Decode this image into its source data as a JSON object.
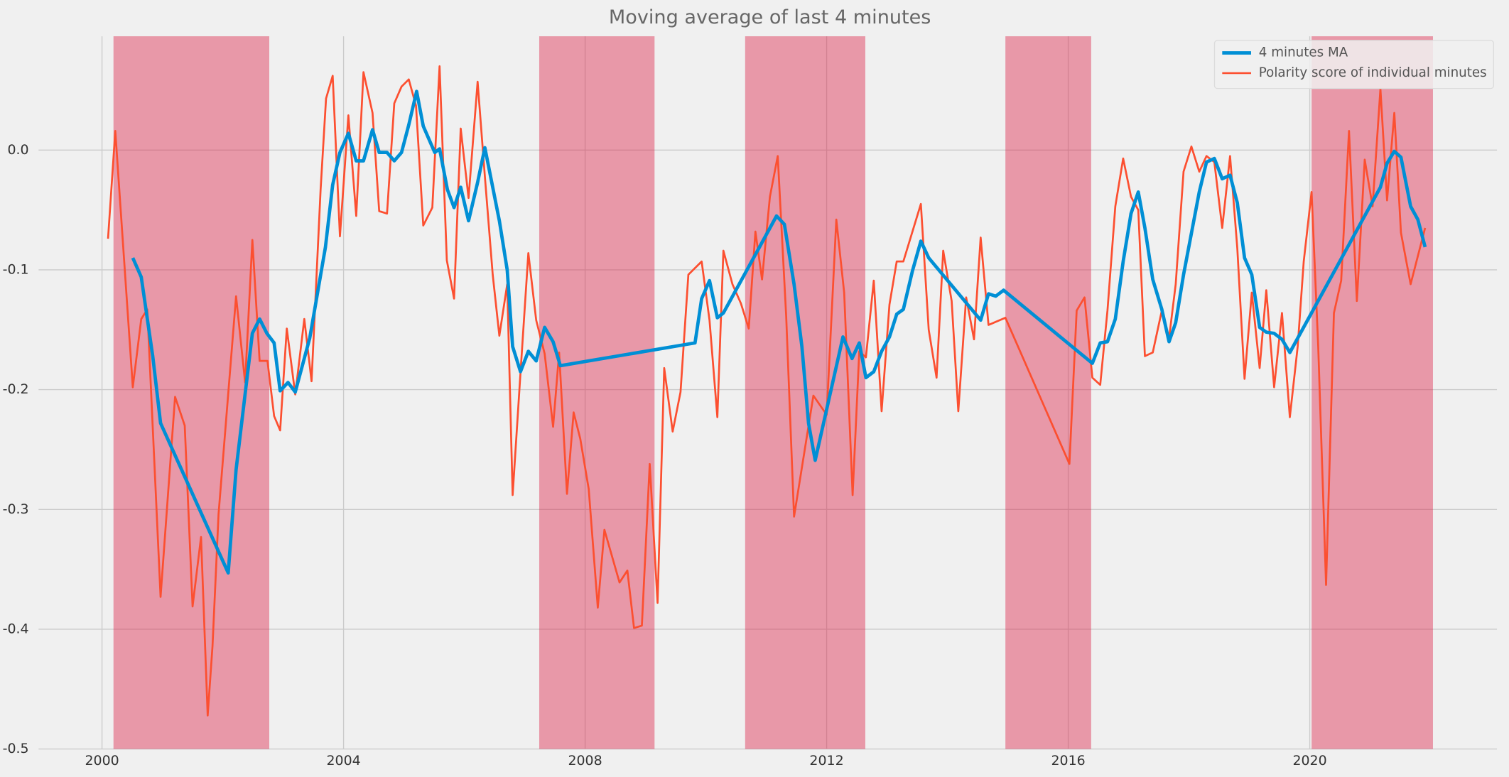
{
  "chart_data": {
    "type": "line",
    "title": "Moving average of last 4 minutes",
    "xlim": [
      1998.95,
      2023.1
    ],
    "ylim": [
      -0.5,
      0.095
    ],
    "xticks": [
      2000,
      2004,
      2008,
      2012,
      2016,
      2020
    ],
    "yticks": [
      {
        "value": 0,
        "label": "0.0"
      },
      -0.1,
      -0.2,
      -0.3,
      -0.4,
      -0.5
    ],
    "grid": true,
    "legend": "upper-right",
    "span_color": "#dc143c",
    "spans": [
      [
        2000.19,
        2002.77
      ],
      [
        2007.24,
        2009.15
      ],
      [
        2010.65,
        2012.64
      ],
      [
        2014.96,
        2016.38
      ],
      [
        2020.03,
        2022.04
      ]
    ],
    "series": [
      {
        "name": "4 minutes MA",
        "color": "#008fd5",
        "x": [
          2000.51,
          2000.65,
          2000.84,
          2000.97,
          2002.09,
          2002.22,
          2002.49,
          2002.61,
          2002.73,
          2002.85,
          2002.95,
          2003.08,
          2003.2,
          2003.44,
          2003.7,
          2003.82,
          2003.94,
          2004.08,
          2004.21,
          2004.33,
          2004.48,
          2004.59,
          2004.72,
          2004.84,
          2004.96,
          2005.08,
          2005.21,
          2005.32,
          2005.51,
          2005.59,
          2005.72,
          2005.83,
          2005.94,
          2006.07,
          2006.22,
          2006.34,
          2006.47,
          2006.58,
          2006.71,
          2006.8,
          2006.93,
          2007.06,
          2007.19,
          2007.33,
          2007.47,
          2007.59,
          2009.82,
          2009.93,
          2010.06,
          2010.19,
          2010.29,
          2011.17,
          2011.3,
          2011.46,
          2011.59,
          2011.7,
          2011.81,
          2012.27,
          2012.42,
          2012.54,
          2012.65,
          2012.78,
          2012.91,
          2013.04,
          2013.16,
          2013.27,
          2013.42,
          2013.56,
          2013.69,
          2014.55,
          2014.68,
          2014.8,
          2014.93,
          2016.4,
          2016.53,
          2016.65,
          2016.78,
          2016.91,
          2017.04,
          2017.16,
          2017.27,
          2017.4,
          2017.55,
          2017.67,
          2017.78,
          2017.91,
          2018.17,
          2018.29,
          2018.42,
          2018.55,
          2018.68,
          2018.8,
          2018.92,
          2019.04,
          2019.17,
          2019.28,
          2019.41,
          2019.54,
          2019.67,
          2021.17,
          2021.28,
          2021.4,
          2021.51,
          2021.67,
          2021.79,
          2021.91
        ],
        "values": [
          -0.09,
          -0.106,
          -0.172,
          -0.228,
          -0.353,
          -0.267,
          -0.153,
          -0.141,
          -0.153,
          -0.161,
          -0.201,
          -0.194,
          -0.202,
          -0.157,
          -0.081,
          -0.029,
          -0.002,
          0.014,
          -0.009,
          -0.009,
          0.017,
          -0.002,
          -0.002,
          -0.009,
          -0.002,
          0.021,
          0.049,
          0.02,
          -0.002,
          0.001,
          -0.033,
          -0.048,
          -0.031,
          -0.059,
          -0.027,
          0.002,
          -0.031,
          -0.059,
          -0.1,
          -0.164,
          -0.185,
          -0.168,
          -0.176,
          -0.148,
          -0.16,
          -0.18,
          -0.161,
          -0.124,
          -0.109,
          -0.14,
          -0.136,
          -0.055,
          -0.062,
          -0.112,
          -0.164,
          -0.228,
          -0.259,
          -0.156,
          -0.174,
          -0.161,
          -0.19,
          -0.185,
          -0.168,
          -0.156,
          -0.137,
          -0.133,
          -0.101,
          -0.076,
          -0.09,
          -0.142,
          -0.12,
          -0.122,
          -0.117,
          -0.178,
          -0.161,
          -0.16,
          -0.141,
          -0.093,
          -0.053,
          -0.035,
          -0.065,
          -0.108,
          -0.133,
          -0.16,
          -0.144,
          -0.104,
          -0.035,
          -0.01,
          -0.007,
          -0.024,
          -0.021,
          -0.044,
          -0.09,
          -0.104,
          -0.148,
          -0.152,
          -0.153,
          -0.158,
          -0.169,
          -0.031,
          -0.011,
          -0.001,
          -0.006,
          -0.047,
          -0.058,
          -0.081
        ]
      },
      {
        "name": "Polarity score of individual minutes",
        "color": "#fc4f30",
        "x": [
          2000.1,
          2000.22,
          2000.51,
          2000.65,
          2000.75,
          2000.97,
          2001.21,
          2001.37,
          2001.5,
          2001.64,
          2001.75,
          2001.83,
          2001.93,
          2002.22,
          2002.37,
          2002.49,
          2002.61,
          2002.74,
          2002.85,
          2002.95,
          2003.06,
          2003.2,
          2003.35,
          2003.47,
          2003.62,
          2003.71,
          2003.82,
          2003.94,
          2004.08,
          2004.21,
          2004.33,
          2004.48,
          2004.59,
          2004.72,
          2004.84,
          2004.96,
          2005.08,
          2005.2,
          2005.32,
          2005.47,
          2005.59,
          2005.71,
          2005.83,
          2005.94,
          2006.07,
          2006.22,
          2006.34,
          2006.47,
          2006.58,
          2006.71,
          2006.8,
          2006.93,
          2007.06,
          2007.19,
          2007.33,
          2007.47,
          2007.57,
          2007.7,
          2007.81,
          2007.92,
          2008.06,
          2008.21,
          2008.32,
          2008.57,
          2008.7,
          2008.81,
          2008.94,
          2009.07,
          2009.2,
          2009.31,
          2009.45,
          2009.58,
          2009.71,
          2009.93,
          2010.06,
          2010.19,
          2010.29,
          2010.44,
          2010.58,
          2010.71,
          2010.82,
          2010.93,
          2011.06,
          2011.19,
          2011.33,
          2011.46,
          2011.78,
          2012.0,
          2012.16,
          2012.29,
          2012.43,
          2012.54,
          2012.65,
          2012.78,
          2012.91,
          2013.04,
          2013.16,
          2013.27,
          2013.56,
          2013.69,
          2013.82,
          2013.93,
          2014.07,
          2014.18,
          2014.31,
          2014.44,
          2014.55,
          2014.68,
          2014.96,
          2016.02,
          2016.14,
          2016.27,
          2016.4,
          2016.53,
          2016.65,
          2016.78,
          2016.91,
          2017.04,
          2017.16,
          2017.27,
          2017.4,
          2017.55,
          2017.67,
          2017.78,
          2017.91,
          2018.04,
          2018.17,
          2018.29,
          2018.42,
          2018.55,
          2018.68,
          2018.8,
          2018.92,
          2019.04,
          2019.17,
          2019.28,
          2019.41,
          2019.54,
          2019.67,
          2019.8,
          2019.9,
          2020.03,
          2020.14,
          2020.27,
          2020.4,
          2020.52,
          2020.65,
          2020.78,
          2020.91,
          2021.04,
          2021.17,
          2021.28,
          2021.4,
          2021.51,
          2021.67,
          2021.91
        ],
        "values": [
          -0.074,
          0.016,
          -0.198,
          -0.141,
          -0.133,
          -0.373,
          -0.206,
          -0.23,
          -0.381,
          -0.323,
          -0.472,
          -0.414,
          -0.304,
          -0.122,
          -0.194,
          -0.075,
          -0.176,
          -0.176,
          -0.222,
          -0.234,
          -0.149,
          -0.204,
          -0.141,
          -0.193,
          -0.033,
          0.043,
          0.062,
          -0.072,
          0.029,
          -0.055,
          0.065,
          0.031,
          -0.051,
          -0.053,
          0.039,
          0.053,
          0.059,
          0.037,
          -0.063,
          -0.048,
          0.07,
          -0.092,
          -0.124,
          0.018,
          -0.04,
          0.057,
          -0.022,
          -0.104,
          -0.155,
          -0.112,
          -0.288,
          -0.186,
          -0.086,
          -0.142,
          -0.17,
          -0.231,
          -0.169,
          -0.287,
          -0.219,
          -0.241,
          -0.283,
          -0.382,
          -0.317,
          -0.361,
          -0.351,
          -0.399,
          -0.397,
          -0.262,
          -0.378,
          -0.182,
          -0.235,
          -0.202,
          -0.104,
          -0.093,
          -0.142,
          -0.223,
          -0.084,
          -0.112,
          -0.128,
          -0.149,
          -0.068,
          -0.108,
          -0.039,
          -0.005,
          -0.139,
          -0.306,
          -0.205,
          -0.221,
          -0.058,
          -0.119,
          -0.288,
          -0.168,
          -0.173,
          -0.109,
          -0.218,
          -0.129,
          -0.093,
          -0.093,
          -0.045,
          -0.15,
          -0.19,
          -0.084,
          -0.126,
          -0.218,
          -0.123,
          -0.158,
          -0.073,
          -0.146,
          -0.14,
          -0.262,
          -0.134,
          -0.123,
          -0.19,
          -0.196,
          -0.134,
          -0.047,
          -0.007,
          -0.039,
          -0.05,
          -0.172,
          -0.169,
          -0.134,
          -0.157,
          -0.112,
          -0.018,
          0.003,
          -0.018,
          -0.005,
          -0.01,
          -0.065,
          -0.005,
          -0.082,
          -0.191,
          -0.119,
          -0.182,
          -0.117,
          -0.198,
          -0.136,
          -0.223,
          -0.164,
          -0.093,
          -0.035,
          -0.164,
          -0.363,
          -0.136,
          -0.109,
          0.016,
          -0.126,
          -0.008,
          -0.047,
          0.051,
          -0.042,
          0.031,
          -0.069,
          -0.112,
          -0.065
        ]
      }
    ]
  }
}
